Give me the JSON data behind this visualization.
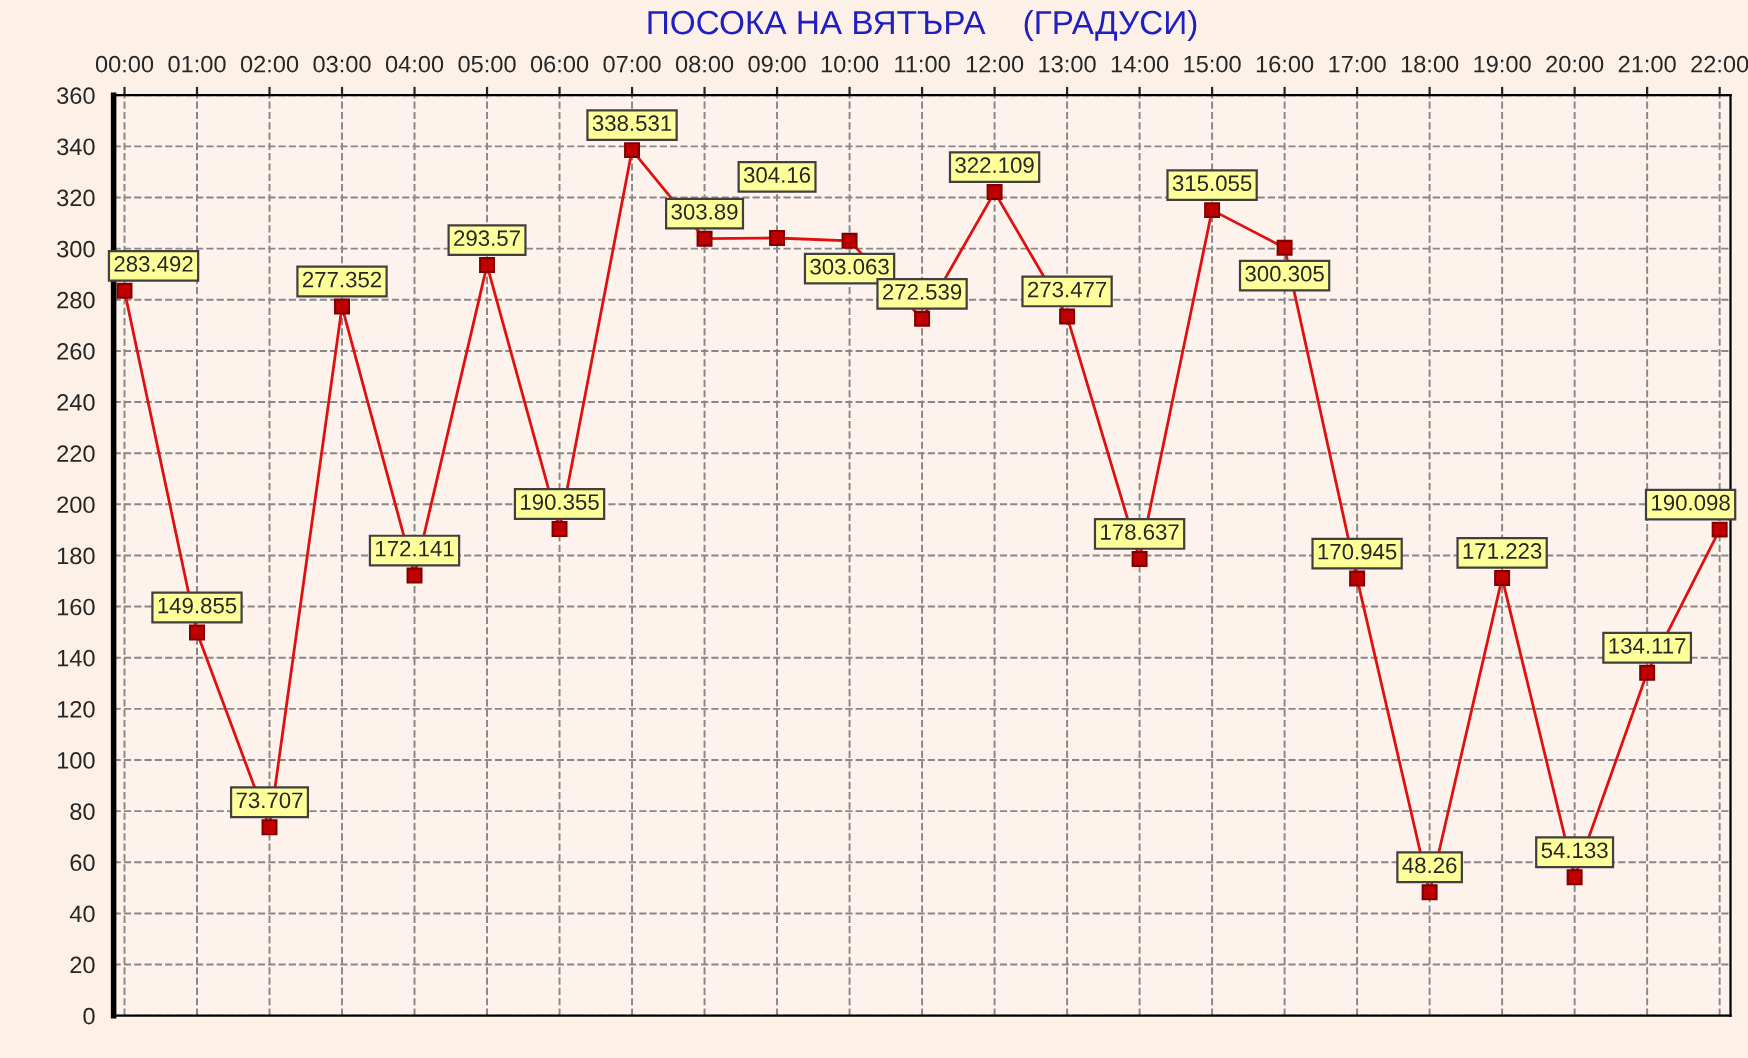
{
  "chart_data": {
    "type": "line",
    "title": "ПОСОКА НА ВЯТЪРА    (ГРАДУСИ)",
    "categories": [
      "00:00",
      "01:00",
      "02:00",
      "03:00",
      "04:00",
      "05:00",
      "06:00",
      "07:00",
      "08:00",
      "09:00",
      "10:00",
      "11:00",
      "12:00",
      "13:00",
      "14:00",
      "15:00",
      "16:00",
      "17:00",
      "18:00",
      "19:00",
      "20:00",
      "21:00",
      "22:00"
    ],
    "series": [
      {
        "color": "#e01010",
        "values": [
          283.492,
          149.855,
          73.707,
          277.352,
          172.141,
          293.57,
          190.355,
          338.531,
          303.89,
          304.16,
          303.063,
          272.539,
          322.109,
          273.477,
          178.637,
          315.055,
          300.305,
          170.945,
          48.26,
          171.223,
          54.133,
          134.117,
          190.098
        ]
      }
    ],
    "ylim": [
      0,
      360
    ],
    "yticks": [
      0,
      20,
      40,
      60,
      80,
      100,
      120,
      140,
      160,
      180,
      200,
      220,
      240,
      260,
      280,
      300,
      320,
      340,
      360
    ],
    "grid": true,
    "marker": "square",
    "line_style": "solid",
    "data_labels": true,
    "legend": false
  }
}
